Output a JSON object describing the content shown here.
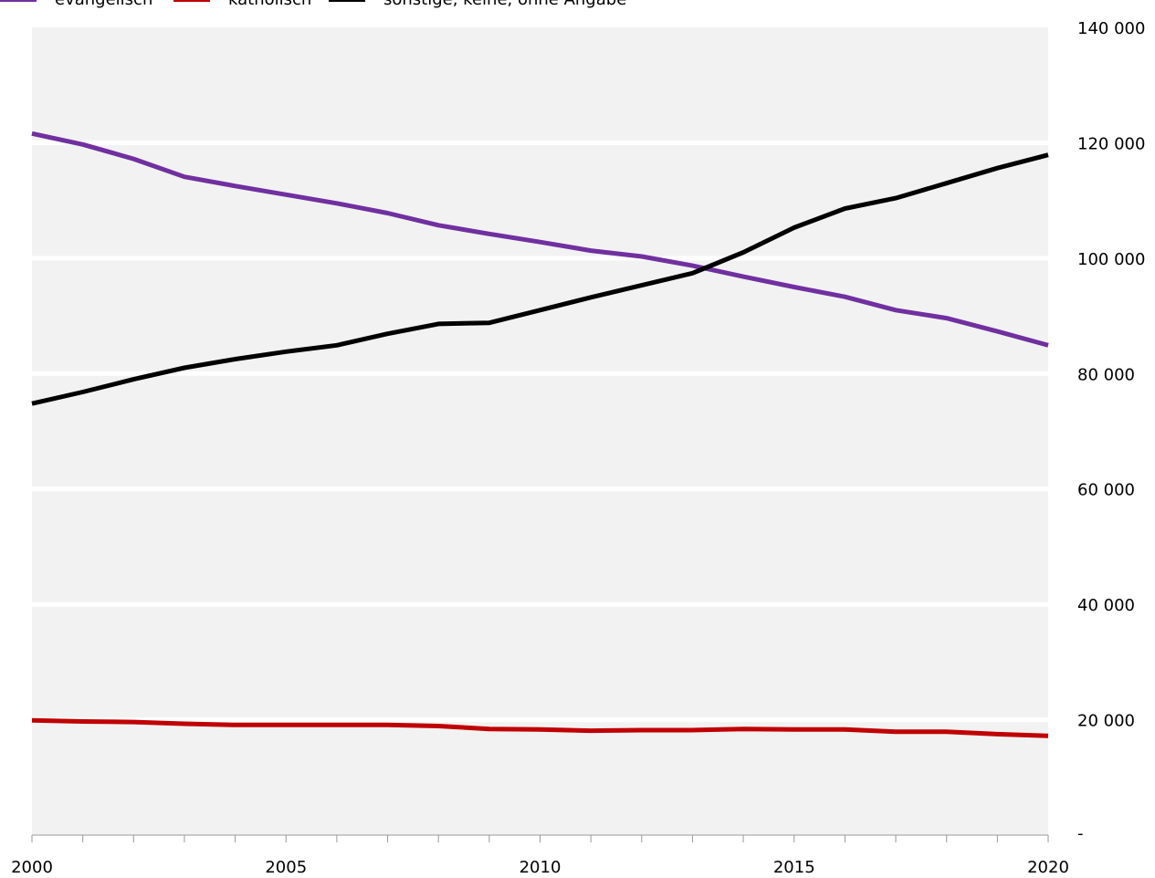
{
  "chart_data": {
    "type": "line",
    "title": "",
    "xlabel": "",
    "ylabel": "",
    "x": [
      2000,
      2001,
      2002,
      2003,
      2004,
      2005,
      2006,
      2007,
      2008,
      2009,
      2010,
      2011,
      2012,
      2013,
      2014,
      2015,
      2016,
      2017,
      2018,
      2019,
      2020
    ],
    "xticks": [
      2000,
      2005,
      2010,
      2015,
      2020
    ],
    "xtick_labels": [
      "2000",
      "2005",
      "2010",
      "2015",
      "2020"
    ],
    "yticks": [
      0,
      20000,
      40000,
      60000,
      80000,
      100000,
      120000,
      140000
    ],
    "ytick_labels": [
      "-",
      "20 000",
      "40 000",
      "60 000",
      "80 000",
      "100 000",
      "120 000",
      "140 000"
    ],
    "ylim": [
      0,
      140000
    ],
    "grid": true,
    "legend_position": "top-left",
    "background_color": "#f2f2f2",
    "series": [
      {
        "name": "evangelisch",
        "color": "#7030a0",
        "values": [
          121600,
          119700,
          117200,
          114100,
          112500,
          111000,
          109500,
          107800,
          105700,
          104200,
          102800,
          101300,
          100300,
          98700,
          96800,
          95000,
          93300,
          91000,
          89600,
          87300,
          84900
        ]
      },
      {
        "name": "katholisch",
        "color": "#c00000",
        "values": [
          19900,
          19700,
          19600,
          19300,
          19100,
          19100,
          19100,
          19100,
          18900,
          18400,
          18300,
          18100,
          18200,
          18200,
          18400,
          18300,
          18300,
          17900,
          17900,
          17500,
          17200
        ]
      },
      {
        "name": "sonstige, keine, ohne Angabe",
        "color": "#000000",
        "values": [
          74800,
          76800,
          79000,
          81000,
          82500,
          83800,
          84900,
          86900,
          88600,
          88800,
          91000,
          93200,
          95300,
          97400,
          101000,
          105300,
          108600,
          110400,
          113000,
          115600,
          117900
        ]
      }
    ]
  }
}
